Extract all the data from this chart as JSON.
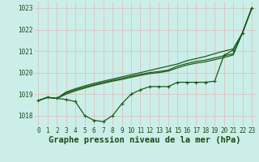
{
  "title": "Graphe pression niveau de la mer (hPa)",
  "background_color": "#cceee8",
  "grid_color": "#aaddcc",
  "line_color": "#1a5c1a",
  "x_hours": [
    0,
    1,
    2,
    3,
    4,
    5,
    6,
    7,
    8,
    9,
    10,
    11,
    12,
    13,
    14,
    15,
    16,
    17,
    18,
    19,
    20,
    21,
    22,
    23
  ],
  "line_main": [
    1018.7,
    1018.85,
    1018.8,
    1018.75,
    1018.65,
    1018.0,
    1017.78,
    1017.72,
    1018.0,
    1018.55,
    1019.0,
    1019.2,
    1019.35,
    1019.35,
    1019.35,
    1019.55,
    1019.55,
    1019.55,
    1019.55,
    1019.6,
    1020.8,
    1021.05,
    1021.85,
    1023.0
  ],
  "line_s1": [
    1018.7,
    1018.85,
    1018.8,
    1019.1,
    1019.25,
    1019.38,
    1019.5,
    1019.6,
    1019.7,
    1019.8,
    1019.9,
    1020.0,
    1020.1,
    1020.2,
    1020.3,
    1020.4,
    1020.55,
    1020.65,
    1020.75,
    1020.88,
    1021.0,
    1021.1,
    1021.85,
    1023.0
  ],
  "line_s2": [
    1018.7,
    1018.85,
    1018.8,
    1019.05,
    1019.2,
    1019.32,
    1019.44,
    1019.54,
    1019.64,
    1019.73,
    1019.83,
    1019.92,
    1020.0,
    1020.05,
    1020.12,
    1020.3,
    1020.42,
    1020.52,
    1020.58,
    1020.68,
    1020.78,
    1020.88,
    1021.85,
    1023.0
  ],
  "line_s3": [
    1018.7,
    1018.85,
    1018.8,
    1019.0,
    1019.15,
    1019.28,
    1019.4,
    1019.5,
    1019.6,
    1019.68,
    1019.78,
    1019.87,
    1019.95,
    1020.0,
    1020.07,
    1020.22,
    1020.35,
    1020.44,
    1020.5,
    1020.6,
    1020.7,
    1020.82,
    1021.85,
    1023.0
  ],
  "ylim": [
    1017.5,
    1023.3
  ],
  "yticks": [
    1018,
    1019,
    1020,
    1021,
    1022,
    1023
  ],
  "linewidth": 0.9,
  "marker_size": 2.8,
  "title_fontsize": 7.5,
  "tick_fontsize": 5.5,
  "figwidth": 3.2,
  "figheight": 2.0,
  "dpi": 100
}
